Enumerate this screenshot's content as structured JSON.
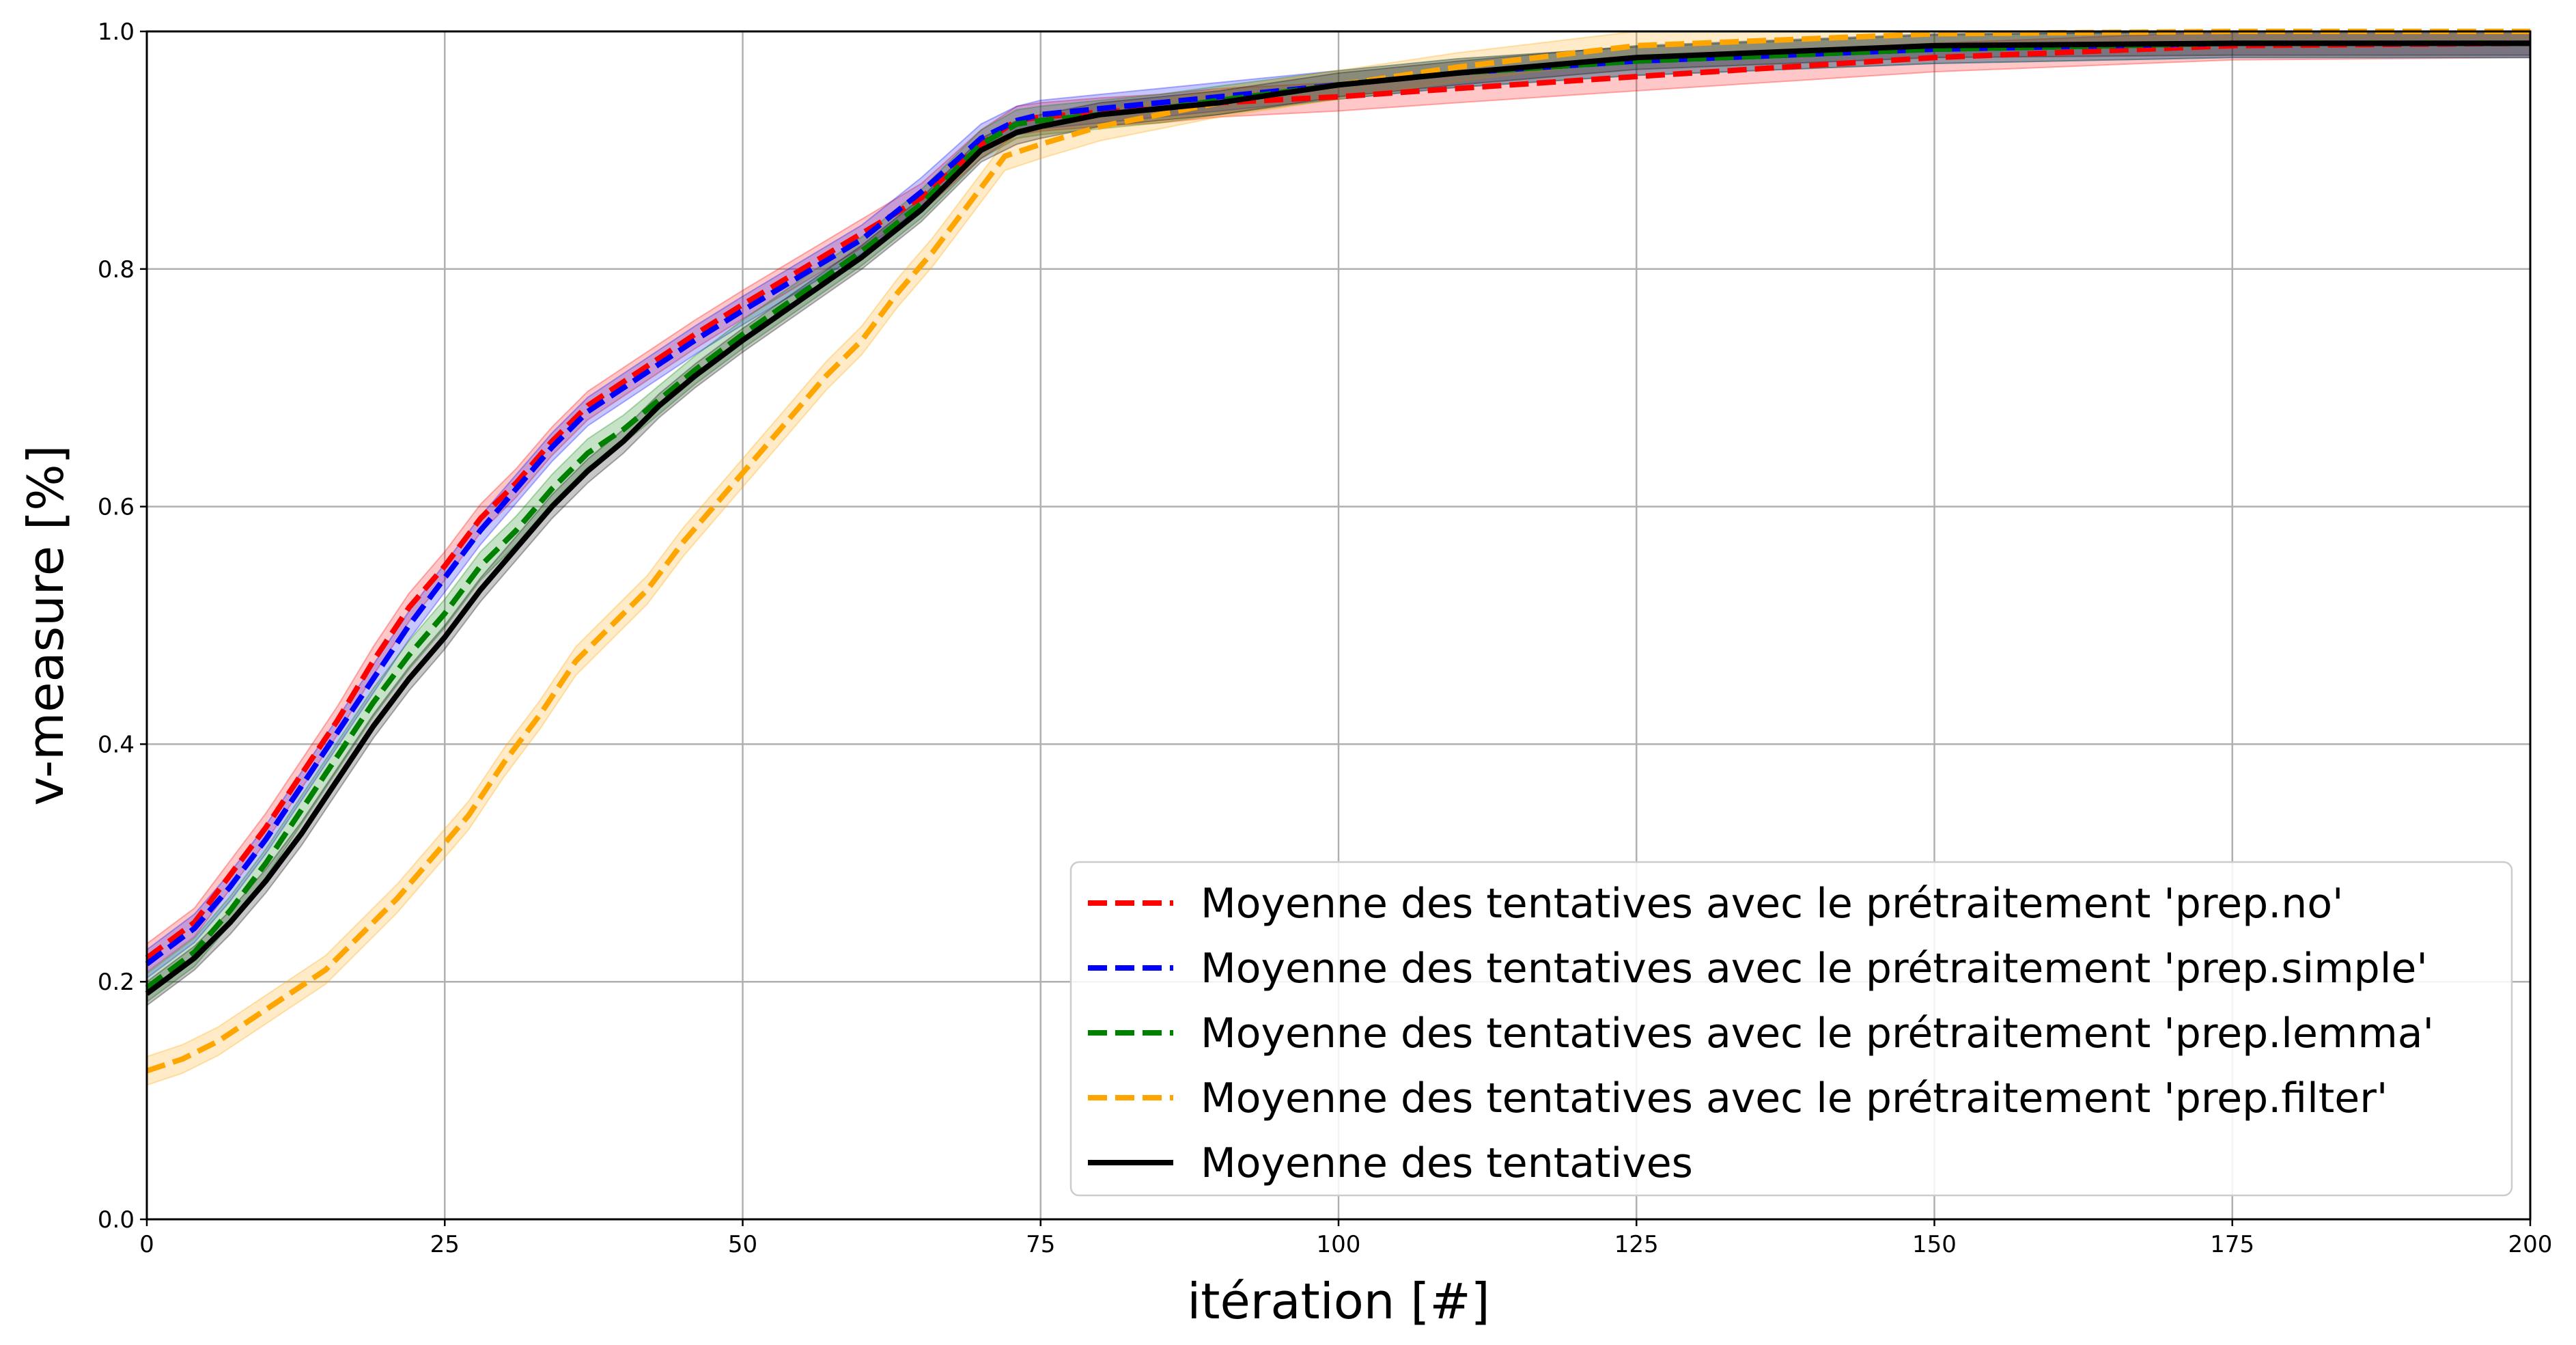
{
  "chart_data": {
    "type": "line",
    "title": "",
    "xlabel": "itération [#]",
    "ylabel": "v-measure [%]",
    "xlim": [
      0,
      200
    ],
    "ylim": [
      0.0,
      1.0
    ],
    "xticks": [
      0,
      25,
      50,
      75,
      100,
      125,
      150,
      175,
      200
    ],
    "yticks": [
      0.0,
      0.2,
      0.4,
      0.6,
      0.8,
      1.0
    ],
    "xtick_labels": [
      "0",
      "25",
      "50",
      "75",
      "100",
      "125",
      "150",
      "175",
      "200"
    ],
    "ytick_labels": [
      "0.0",
      "0.2",
      "0.4",
      "0.6",
      "0.8",
      "1.0"
    ],
    "grid": true,
    "legend_position": "bottom-right",
    "series": [
      {
        "name": "Moyenne des tentatives avec le prétraitement 'prep.no'",
        "color": "#ff0000",
        "dash": true,
        "band": 0.012,
        "x": [
          0,
          2,
          4,
          7,
          10,
          13,
          16,
          19,
          22,
          25,
          28,
          31,
          34,
          37,
          40,
          43,
          46,
          50,
          55,
          60,
          65,
          70,
          73,
          75,
          80,
          85,
          90,
          100,
          110,
          125,
          150,
          175,
          200
        ],
        "y": [
          0.22,
          0.235,
          0.25,
          0.29,
          0.33,
          0.375,
          0.42,
          0.47,
          0.515,
          0.55,
          0.59,
          0.62,
          0.655,
          0.685,
          0.705,
          0.725,
          0.745,
          0.77,
          0.8,
          0.83,
          0.86,
          0.905,
          0.925,
          0.928,
          0.932,
          0.935,
          0.94,
          0.945,
          0.952,
          0.962,
          0.978,
          0.988,
          0.99
        ]
      },
      {
        "name": "Moyenne des tentatives avec le prétraitement 'prep.simple'",
        "color": "#0000ff",
        "dash": true,
        "band": 0.012,
        "x": [
          0,
          2,
          4,
          7,
          10,
          13,
          16,
          19,
          22,
          25,
          28,
          31,
          34,
          37,
          40,
          43,
          46,
          50,
          55,
          60,
          65,
          70,
          73,
          75,
          80,
          85,
          90,
          100,
          110,
          125,
          150,
          175,
          200
        ],
        "y": [
          0.215,
          0.23,
          0.245,
          0.28,
          0.32,
          0.365,
          0.41,
          0.455,
          0.5,
          0.54,
          0.58,
          0.615,
          0.65,
          0.68,
          0.7,
          0.72,
          0.74,
          0.765,
          0.795,
          0.825,
          0.865,
          0.91,
          0.925,
          0.93,
          0.935,
          0.94,
          0.945,
          0.955,
          0.965,
          0.975,
          0.985,
          0.99,
          0.99
        ]
      },
      {
        "name": "Moyenne des tentatives avec le prétraitement 'prep.lemma'",
        "color": "#008000",
        "dash": true,
        "band": 0.012,
        "x": [
          0,
          2,
          4,
          7,
          10,
          13,
          16,
          19,
          22,
          25,
          28,
          31,
          34,
          37,
          40,
          43,
          46,
          50,
          55,
          60,
          65,
          70,
          73,
          75,
          80,
          85,
          90,
          100,
          110,
          125,
          150,
          175,
          200
        ],
        "y": [
          0.195,
          0.21,
          0.225,
          0.26,
          0.3,
          0.345,
          0.39,
          0.435,
          0.475,
          0.51,
          0.55,
          0.58,
          0.615,
          0.645,
          0.665,
          0.69,
          0.715,
          0.745,
          0.78,
          0.815,
          0.855,
          0.905,
          0.922,
          0.925,
          0.93,
          0.935,
          0.942,
          0.955,
          0.965,
          0.975,
          0.985,
          0.99,
          0.99
        ]
      },
      {
        "name": "Moyenne des tentatives avec le prétraitement 'prep.filter'",
        "color": "#ffa500",
        "dash": true,
        "band": 0.012,
        "x": [
          0,
          3,
          6,
          9,
          12,
          15,
          18,
          21,
          24,
          27,
          30,
          33,
          36,
          39,
          42,
          45,
          48,
          51,
          54,
          57,
          60,
          63,
          66,
          69,
          72,
          75,
          80,
          85,
          90,
          100,
          110,
          125,
          150,
          175,
          200
        ],
        "y": [
          0.125,
          0.135,
          0.15,
          0.17,
          0.19,
          0.21,
          0.24,
          0.27,
          0.305,
          0.34,
          0.385,
          0.425,
          0.47,
          0.5,
          0.53,
          0.57,
          0.605,
          0.64,
          0.675,
          0.71,
          0.74,
          0.78,
          0.815,
          0.855,
          0.895,
          0.905,
          0.92,
          0.93,
          0.94,
          0.955,
          0.97,
          0.988,
          0.998,
          1.0,
          1.0
        ]
      },
      {
        "name": "Moyenne des tentatives",
        "color": "#000000",
        "dash": false,
        "band": 0.01,
        "x": [
          0,
          2,
          4,
          7,
          10,
          13,
          16,
          19,
          22,
          25,
          28,
          31,
          34,
          37,
          40,
          43,
          46,
          50,
          55,
          60,
          65,
          70,
          73,
          75,
          80,
          85,
          90,
          100,
          110,
          125,
          150,
          175,
          200
        ],
        "y": [
          0.19,
          0.205,
          0.22,
          0.25,
          0.285,
          0.325,
          0.37,
          0.415,
          0.455,
          0.49,
          0.53,
          0.565,
          0.6,
          0.63,
          0.655,
          0.685,
          0.71,
          0.74,
          0.775,
          0.81,
          0.85,
          0.9,
          0.915,
          0.92,
          0.93,
          0.935,
          0.94,
          0.955,
          0.965,
          0.978,
          0.988,
          0.99,
          0.99
        ]
      }
    ]
  }
}
